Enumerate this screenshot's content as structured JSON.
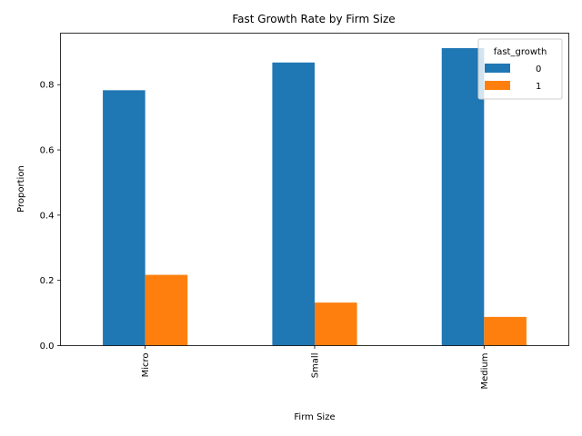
{
  "chart_data": {
    "type": "bar",
    "title": "Fast Growth Rate by Firm Size",
    "xlabel": "Firm Size",
    "ylabel": "Proportion",
    "categories": [
      "Micro",
      "Small",
      "Medium"
    ],
    "series": [
      {
        "name": "0",
        "values": [
          0.783,
          0.868,
          0.912
        ],
        "color": "#1f77b4"
      },
      {
        "name": "1",
        "values": [
          0.217,
          0.132,
          0.088
        ],
        "color": "#ff7f0e"
      }
    ],
    "ylim": [
      0,
      0.958
    ],
    "yticks": [
      0.0,
      0.2,
      0.4,
      0.6,
      0.8
    ],
    "ytick_labels": [
      "0.0",
      "0.2",
      "0.4",
      "0.6",
      "0.8"
    ],
    "legend": {
      "title": "fast_growth",
      "placement": "top-right"
    },
    "grid": false
  }
}
